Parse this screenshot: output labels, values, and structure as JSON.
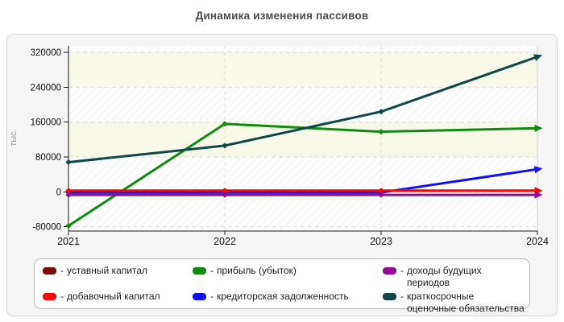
{
  "title": "Динамика изменения пассивов",
  "legend": {
    "bullet": "-"
  },
  "chart_data": {
    "type": "line",
    "title": "Динамика изменения пассивов",
    "x": [
      2021,
      2022,
      2023,
      2024
    ],
    "xlabel": "",
    "ylabel": "тыс.",
    "ylim": [
      -80000,
      320000
    ],
    "ytick_step": 80000,
    "grid": true,
    "legend_position": "bottom",
    "series": [
      {
        "name": "уставный капитал",
        "color": "#7c0b0b",
        "values": [
          2500,
          2500,
          2500,
          2500
        ]
      },
      {
        "name": "добавочный капитал",
        "color": "#fa0606",
        "values": [
          2500,
          2500,
          2500,
          2500
        ]
      },
      {
        "name": "прибыль (убыток)",
        "color": "#128912",
        "values": [
          -78000,
          156000,
          138000,
          146000
        ]
      },
      {
        "name": "кредиторская задолженность",
        "color": "#1111ee",
        "values": [
          -1500,
          -1500,
          -1500,
          52000
        ]
      },
      {
        "name": "доходы будущих периодов",
        "color": "#930d93",
        "values": [
          -7000,
          -7000,
          -7000,
          -7000
        ]
      },
      {
        "name": "краткосрочные оценочные обязательства",
        "color": "#11474b",
        "values": [
          68000,
          106000,
          184000,
          310000
        ]
      }
    ]
  }
}
